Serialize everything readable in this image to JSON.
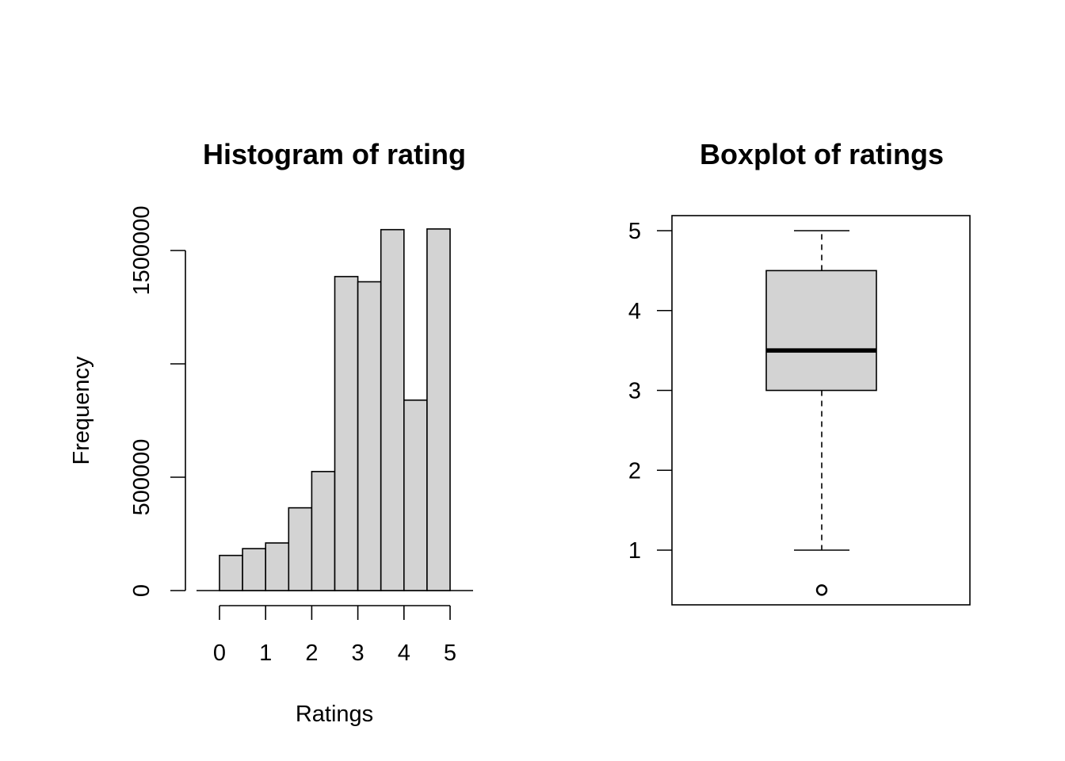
{
  "chart_data": [
    {
      "type": "histogram",
      "title": "Histogram of rating",
      "xlabel": "Ratings",
      "ylabel": "Frequency",
      "bins": [
        {
          "from": 0.0,
          "to": 0.5,
          "count": 155000
        },
        {
          "from": 0.5,
          "to": 1.0,
          "count": 185000
        },
        {
          "from": 1.0,
          "to": 1.5,
          "count": 210000
        },
        {
          "from": 1.5,
          "to": 2.0,
          "count": 365000
        },
        {
          "from": 2.0,
          "to": 2.5,
          "count": 525000
        },
        {
          "from": 2.5,
          "to": 3.0,
          "count": 1385000
        },
        {
          "from": 3.0,
          "to": 3.5,
          "count": 1362000
        },
        {
          "from": 3.5,
          "to": 4.0,
          "count": 1592000
        },
        {
          "from": 4.0,
          "to": 4.5,
          "count": 840000
        },
        {
          "from": 4.5,
          "to": 5.0,
          "count": 1595000
        }
      ],
      "xticks": [
        "0",
        "1",
        "2",
        "3",
        "4",
        "5"
      ],
      "yticks": [
        "0",
        "500000",
        "1500000"
      ],
      "ytick_values": [
        0,
        500000,
        1500000
      ],
      "yminor_ticks": [
        1000000
      ],
      "xlim": [
        -0.25,
        5.5
      ],
      "ylim": [
        0,
        1600000
      ],
      "fill_color": "#d3d3d3",
      "grid": false,
      "legend": "none"
    },
    {
      "type": "boxplot",
      "title": "Boxplot of ratings",
      "ylabel": "",
      "whisker_low": 1.0,
      "q1": 3.0,
      "median": 3.5,
      "q3": 4.5,
      "whisker_high": 5.0,
      "outliers": [
        0.5
      ],
      "yticks": [
        "1",
        "2",
        "3",
        "4",
        "5"
      ],
      "ytick_values": [
        1,
        2,
        3,
        4,
        5
      ],
      "ylim": [
        0.32,
        5.18
      ],
      "fill_color": "#d3d3d3",
      "grid": false,
      "legend": "none"
    }
  ]
}
